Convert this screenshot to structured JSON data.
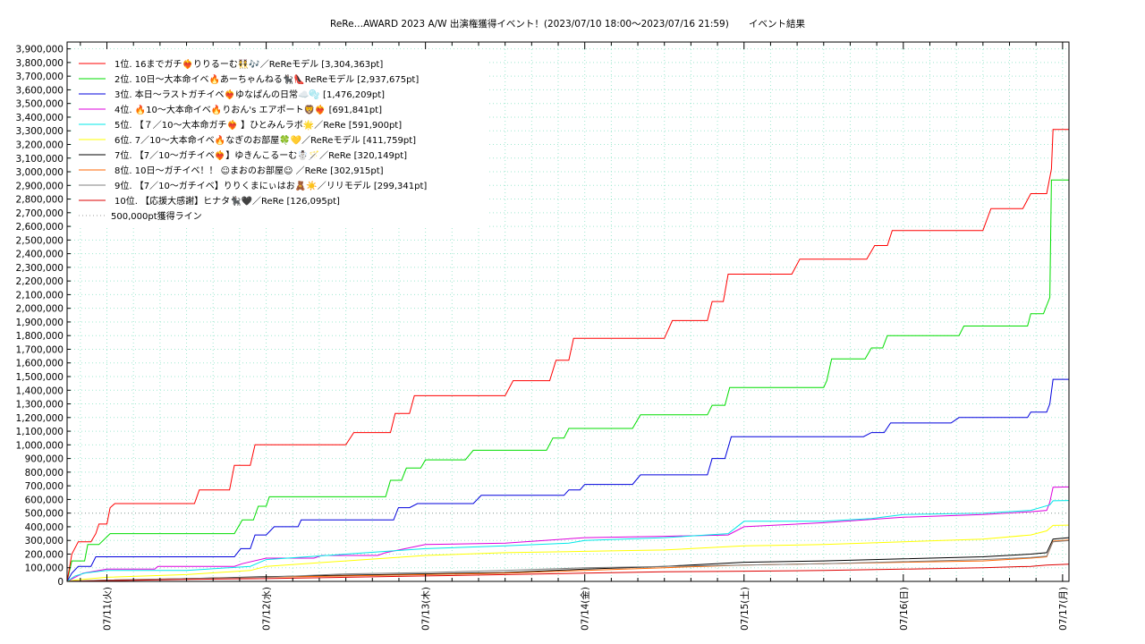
{
  "chart_data": {
    "type": "line",
    "title": "ReRe…AWARD 2023 A/W 出演権獲得イベント！(2023/07/10 18:00〜2023/07/16 21:59)",
    "subtitle": "イベント結果",
    "xlabel": "",
    "ylabel": "",
    "x_range": [
      -0.25,
      6.04
    ],
    "ylim": [
      0,
      3950000
    ],
    "y_tick_step": 100000,
    "x_ticks": [
      {
        "x": 0,
        "label": "07/11(火)"
      },
      {
        "x": 1,
        "label": "07/12(水)"
      },
      {
        "x": 2,
        "label": "07/13(木)"
      },
      {
        "x": 3,
        "label": "07/14(金)"
      },
      {
        "x": 4,
        "label": "07/15(土)"
      },
      {
        "x": 5,
        "label": "07/16(日)"
      },
      {
        "x": 6,
        "label": "07/17(月)"
      }
    ],
    "grid": true,
    "legend_position": "top-left",
    "series": [
      {
        "name": "1位. 16までガチ❤️‍🔥りりるーむ👯🎶／ReReモデル [3,304,363pt]",
        "color": "#ff0000",
        "points": [
          [
            -0.25,
            0
          ],
          [
            -0.22,
            200000
          ],
          [
            -0.18,
            290000
          ],
          [
            -0.14,
            290000
          ],
          [
            -0.1,
            290000
          ],
          [
            -0.07,
            350000
          ],
          [
            -0.05,
            420000
          ],
          [
            0.0,
            420000
          ],
          [
            0.02,
            540000
          ],
          [
            0.05,
            570000
          ],
          [
            0.55,
            570000
          ],
          [
            0.58,
            670000
          ],
          [
            0.77,
            670000
          ],
          [
            0.8,
            850000
          ],
          [
            0.9,
            850000
          ],
          [
            0.93,
            1000000
          ],
          [
            1.5,
            1000000
          ],
          [
            1.55,
            1090000
          ],
          [
            1.78,
            1090000
          ],
          [
            1.81,
            1230000
          ],
          [
            1.9,
            1230000
          ],
          [
            1.93,
            1360000
          ],
          [
            2.5,
            1360000
          ],
          [
            2.55,
            1470000
          ],
          [
            2.78,
            1470000
          ],
          [
            2.82,
            1620000
          ],
          [
            2.9,
            1620000
          ],
          [
            2.93,
            1780000
          ],
          [
            3.5,
            1780000
          ],
          [
            3.55,
            1910000
          ],
          [
            3.77,
            1910000
          ],
          [
            3.8,
            2050000
          ],
          [
            3.87,
            2050000
          ],
          [
            3.9,
            2250000
          ],
          [
            4.3,
            2250000
          ],
          [
            4.35,
            2360000
          ],
          [
            4.77,
            2360000
          ],
          [
            4.82,
            2460000
          ],
          [
            4.9,
            2460000
          ],
          [
            4.93,
            2570000
          ],
          [
            5.5,
            2570000
          ],
          [
            5.55,
            2730000
          ],
          [
            5.75,
            2730000
          ],
          [
            5.8,
            2840000
          ],
          [
            5.9,
            2840000
          ],
          [
            5.93,
            3020000
          ],
          [
            5.94,
            3310000
          ],
          [
            6.04,
            3310000
          ]
        ]
      },
      {
        "name": "2位. 10日〜大本命イベ🔥あーちゃんねる🐈‍⬛👠ReReモデル [2,937,675pt]",
        "color": "#00dd00",
        "points": [
          [
            -0.25,
            0
          ],
          [
            -0.22,
            150000
          ],
          [
            -0.14,
            150000
          ],
          [
            -0.12,
            270000
          ],
          [
            -0.05,
            270000
          ],
          [
            0.02,
            350000
          ],
          [
            0.8,
            350000
          ],
          [
            0.85,
            450000
          ],
          [
            0.92,
            450000
          ],
          [
            0.95,
            550000
          ],
          [
            1.0,
            550000
          ],
          [
            1.02,
            620000
          ],
          [
            1.75,
            620000
          ],
          [
            1.78,
            740000
          ],
          [
            1.85,
            740000
          ],
          [
            1.88,
            830000
          ],
          [
            1.97,
            830000
          ],
          [
            2.0,
            890000
          ],
          [
            2.25,
            890000
          ],
          [
            2.3,
            960000
          ],
          [
            2.76,
            960000
          ],
          [
            2.8,
            1050000
          ],
          [
            2.87,
            1050000
          ],
          [
            2.9,
            1120000
          ],
          [
            3.3,
            1120000
          ],
          [
            3.35,
            1220000
          ],
          [
            3.77,
            1220000
          ],
          [
            3.8,
            1290000
          ],
          [
            3.88,
            1290000
          ],
          [
            3.91,
            1420000
          ],
          [
            4.5,
            1420000
          ],
          [
            4.52,
            1470000
          ],
          [
            4.55,
            1630000
          ],
          [
            4.76,
            1630000
          ],
          [
            4.8,
            1710000
          ],
          [
            4.87,
            1710000
          ],
          [
            4.9,
            1800000
          ],
          [
            5.35,
            1800000
          ],
          [
            5.38,
            1870000
          ],
          [
            5.78,
            1870000
          ],
          [
            5.8,
            1960000
          ],
          [
            5.88,
            1960000
          ],
          [
            5.92,
            2080000
          ],
          [
            5.93,
            2940000
          ],
          [
            6.04,
            2940000
          ]
        ]
      },
      {
        "name": "3位. 本日〜ラストガチイベ❤️‍🔥ゆなぱんの日常☁️🫧 [1,476,209pt]",
        "color": "#0000dd",
        "points": [
          [
            -0.25,
            0
          ],
          [
            -0.22,
            60000
          ],
          [
            -0.18,
            110000
          ],
          [
            -0.1,
            110000
          ],
          [
            -0.07,
            180000
          ],
          [
            0.8,
            180000
          ],
          [
            0.84,
            240000
          ],
          [
            0.9,
            240000
          ],
          [
            0.93,
            340000
          ],
          [
            1.0,
            340000
          ],
          [
            1.05,
            400000
          ],
          [
            1.2,
            400000
          ],
          [
            1.22,
            450000
          ],
          [
            1.8,
            450000
          ],
          [
            1.83,
            540000
          ],
          [
            1.9,
            540000
          ],
          [
            1.95,
            570000
          ],
          [
            2.3,
            570000
          ],
          [
            2.35,
            630000
          ],
          [
            2.87,
            630000
          ],
          [
            2.9,
            670000
          ],
          [
            2.97,
            670000
          ],
          [
            3.0,
            710000
          ],
          [
            3.3,
            710000
          ],
          [
            3.35,
            780000
          ],
          [
            3.77,
            780000
          ],
          [
            3.8,
            900000
          ],
          [
            3.88,
            900000
          ],
          [
            3.92,
            1060000
          ],
          [
            4.75,
            1060000
          ],
          [
            4.8,
            1090000
          ],
          [
            4.88,
            1090000
          ],
          [
            4.92,
            1160000
          ],
          [
            5.3,
            1160000
          ],
          [
            5.35,
            1200000
          ],
          [
            5.78,
            1200000
          ],
          [
            5.8,
            1240000
          ],
          [
            5.9,
            1240000
          ],
          [
            5.92,
            1300000
          ],
          [
            5.94,
            1480000
          ],
          [
            6.04,
            1480000
          ]
        ]
      },
      {
        "name": "4位. 🔥10〜大本命イベ🔥りおん's エアポート🦁❤️‍🔥 [691,841pt]",
        "color": "#dd00dd",
        "points": [
          [
            -0.25,
            0
          ],
          [
            -0.2,
            30000
          ],
          [
            -0.15,
            60000
          ],
          [
            0.0,
            90000
          ],
          [
            0.3,
            90000
          ],
          [
            0.32,
            110000
          ],
          [
            0.8,
            110000
          ],
          [
            0.85,
            130000
          ],
          [
            1.0,
            170000
          ],
          [
            1.3,
            170000
          ],
          [
            1.35,
            190000
          ],
          [
            1.7,
            190000
          ],
          [
            1.75,
            210000
          ],
          [
            2.0,
            270000
          ],
          [
            2.5,
            280000
          ],
          [
            3.0,
            320000
          ],
          [
            3.5,
            330000
          ],
          [
            3.9,
            340000
          ],
          [
            4.0,
            400000
          ],
          [
            4.5,
            430000
          ],
          [
            5.0,
            470000
          ],
          [
            5.5,
            490000
          ],
          [
            5.8,
            510000
          ],
          [
            5.9,
            520000
          ],
          [
            5.92,
            580000
          ],
          [
            5.94,
            690000
          ],
          [
            6.04,
            692000
          ]
        ]
      },
      {
        "name": "5位. 【７／10〜大本命ガチ❤️‍🔥 】ひとみんラボ🌟／ReRe [591,900pt]",
        "color": "#00e8e8",
        "points": [
          [
            -0.25,
            0
          ],
          [
            -0.2,
            40000
          ],
          [
            -0.14,
            60000
          ],
          [
            0.0,
            80000
          ],
          [
            0.5,
            80000
          ],
          [
            0.9,
            110000
          ],
          [
            1.0,
            160000
          ],
          [
            1.5,
            200000
          ],
          [
            2.0,
            240000
          ],
          [
            2.5,
            260000
          ],
          [
            2.9,
            280000
          ],
          [
            3.0,
            300000
          ],
          [
            3.5,
            320000
          ],
          [
            3.9,
            350000
          ],
          [
            4.0,
            440000
          ],
          [
            4.5,
            440000
          ],
          [
            4.8,
            460000
          ],
          [
            5.0,
            490000
          ],
          [
            5.5,
            500000
          ],
          [
            5.8,
            520000
          ],
          [
            5.92,
            560000
          ],
          [
            5.94,
            590000
          ],
          [
            6.04,
            592000
          ]
        ]
      },
      {
        "name": "6位. 7／10〜大本命イベ🔥なぎのお部屋🍀💛／ReReモデル [411,759pt]",
        "color": "#ffff00",
        "points": [
          [
            -0.25,
            0
          ],
          [
            -0.2,
            10000
          ],
          [
            0.0,
            30000
          ],
          [
            0.5,
            50000
          ],
          [
            0.9,
            80000
          ],
          [
            1.0,
            110000
          ],
          [
            1.5,
            150000
          ],
          [
            2.0,
            190000
          ],
          [
            2.5,
            210000
          ],
          [
            3.0,
            220000
          ],
          [
            3.5,
            230000
          ],
          [
            4.0,
            260000
          ],
          [
            4.5,
            270000
          ],
          [
            5.0,
            290000
          ],
          [
            5.5,
            310000
          ],
          [
            5.8,
            340000
          ],
          [
            5.9,
            370000
          ],
          [
            5.94,
            410000
          ],
          [
            6.04,
            412000
          ]
        ]
      },
      {
        "name": "7位. 【7／10〜ガチイベ❤️‍🔥】ゆきんこるーむ☃️🪄／ReRe [320,149pt]",
        "color": "#000000",
        "points": [
          [
            -0.25,
            0
          ],
          [
            0.0,
            5000
          ],
          [
            0.5,
            20000
          ],
          [
            1.0,
            35000
          ],
          [
            1.5,
            45000
          ],
          [
            2.0,
            55000
          ],
          [
            2.5,
            65000
          ],
          [
            3.0,
            90000
          ],
          [
            3.5,
            110000
          ],
          [
            4.0,
            140000
          ],
          [
            4.5,
            150000
          ],
          [
            5.0,
            165000
          ],
          [
            5.5,
            180000
          ],
          [
            5.8,
            200000
          ],
          [
            5.9,
            210000
          ],
          [
            5.94,
            310000
          ],
          [
            6.04,
            320000
          ]
        ]
      },
      {
        "name": "8位. 10日〜ガチイベ！！ ☺まおのお部屋☺ ／ReRe [302,915pt]",
        "color": "#ff6600",
        "points": [
          [
            -0.25,
            0
          ],
          [
            0.0,
            10000
          ],
          [
            0.5,
            20000
          ],
          [
            1.0,
            30000
          ],
          [
            1.5,
            40000
          ],
          [
            2.0,
            50000
          ],
          [
            2.5,
            60000
          ],
          [
            3.0,
            80000
          ],
          [
            3.5,
            100000
          ],
          [
            4.0,
            120000
          ],
          [
            4.5,
            130000
          ],
          [
            5.0,
            140000
          ],
          [
            5.5,
            150000
          ],
          [
            5.8,
            170000
          ],
          [
            5.9,
            180000
          ],
          [
            5.94,
            295000
          ],
          [
            6.04,
            303000
          ]
        ]
      },
      {
        "name": "9位. 【7／10〜ガチイベ】りりくまにぃはお🧸☀️／リリモデル [299,341pt]",
        "color": "#808080",
        "points": [
          [
            -0.25,
            0
          ],
          [
            0.0,
            10000
          ],
          [
            0.5,
            20000
          ],
          [
            1.0,
            30000
          ],
          [
            1.5,
            55000
          ],
          [
            2.0,
            65000
          ],
          [
            2.5,
            80000
          ],
          [
            3.0,
            100000
          ],
          [
            3.5,
            110000
          ],
          [
            4.0,
            120000
          ],
          [
            4.5,
            130000
          ],
          [
            5.0,
            145000
          ],
          [
            5.5,
            160000
          ],
          [
            5.8,
            175000
          ],
          [
            5.9,
            185000
          ],
          [
            5.94,
            290000
          ],
          [
            6.04,
            299000
          ]
        ]
      },
      {
        "name": "10位. 【応援大感謝】ヒナタ🐈‍⬛🖤／ReRe [126,095pt]",
        "color": "#dd0000",
        "points": [
          [
            -0.25,
            0
          ],
          [
            0.0,
            5000
          ],
          [
            0.5,
            15000
          ],
          [
            1.0,
            20000
          ],
          [
            1.5,
            30000
          ],
          [
            2.0,
            40000
          ],
          [
            2.5,
            50000
          ],
          [
            3.0,
            60000
          ],
          [
            3.5,
            70000
          ],
          [
            4.0,
            75000
          ],
          [
            4.5,
            80000
          ],
          [
            5.0,
            90000
          ],
          [
            5.5,
            100000
          ],
          [
            5.8,
            110000
          ],
          [
            5.9,
            120000
          ],
          [
            6.04,
            126000
          ]
        ]
      },
      {
        "name": "500,000pt獲得ライン",
        "color": "#999999",
        "dashed": true,
        "points": [
          [
            -0.25,
            500000
          ],
          [
            6.04,
            500000
          ]
        ]
      }
    ]
  }
}
